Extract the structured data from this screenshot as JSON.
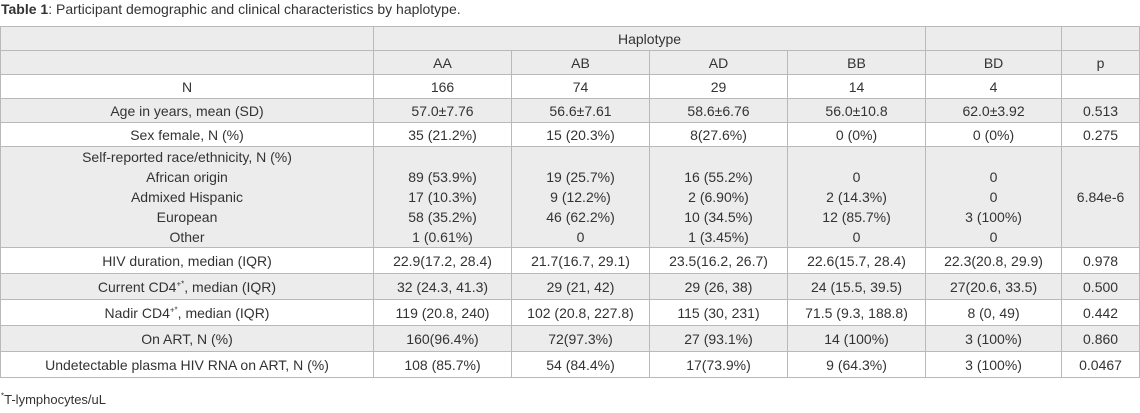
{
  "caption": {
    "label": "Table 1",
    "text": ": Participant demographic and clinical characteristics by haplotype."
  },
  "header": {
    "group": "Haplotype",
    "columns": [
      "AA",
      "AB",
      "AD",
      "BB",
      "BD"
    ],
    "p": "p"
  },
  "rows": {
    "n": {
      "label": "N",
      "values": [
        "166",
        "74",
        "29",
        "14",
        "4"
      ],
      "p": ""
    },
    "age": {
      "label": "Age in years, mean (SD)",
      "values": [
        "57.0±7.76",
        "56.6±7.61",
        "58.6±6.76",
        "56.0±10.8",
        "62.0±3.92"
      ],
      "p": "0.513"
    },
    "sex": {
      "label": "Sex female, N (%)",
      "values": [
        "35 (21.2%)",
        "15 (20.3%)",
        "8(27.6%)",
        "0 (0%)",
        "0 (0%)"
      ],
      "p": "0.275"
    },
    "race": {
      "label": "Self-reported race/ethnicity, N (%)",
      "sub": [
        {
          "label": "African origin",
          "values": [
            "89 (53.9%)",
            "19 (25.7%)",
            "16 (55.2%)",
            "0",
            "0"
          ]
        },
        {
          "label": "Admixed Hispanic",
          "values": [
            "17 (10.3%)",
            "9 (12.2%)",
            "2 (6.90%)",
            "2 (14.3%)",
            "0"
          ]
        },
        {
          "label": "European",
          "values": [
            "58 (35.2%)",
            "46 (62.2%)",
            "10 (34.5%)",
            "12 (85.7%)",
            "3 (100%)"
          ]
        },
        {
          "label": "Other",
          "values": [
            "1 (0.61%)",
            "0",
            "1 (3.45%)",
            "0",
            "0"
          ]
        }
      ],
      "p": "6.84e-6"
    },
    "hiv_duration": {
      "label": "HIV duration, median (IQR)",
      "values": [
        "22.9(17.2, 28.4)",
        "21.7(16.7, 29.1)",
        "23.5(16.2, 26.7)",
        "22.6(15.7, 28.4)",
        "22.3(20.8, 29.9)"
      ],
      "p": "0.978"
    },
    "cd4_current": {
      "label_pre": "Current CD4",
      "label_sup": "+*",
      "label_post": ", median (IQR)",
      "values": [
        "32 (24.3, 41.3)",
        "29 (21, 42)",
        "29 (26, 38)",
        "24 (15.5, 39.5)",
        "27(20.6, 33.5)"
      ],
      "p": "0.500"
    },
    "cd4_nadir": {
      "label_pre": "Nadir CD4",
      "label_sup": "+*",
      "label_post": ", median (IQR)",
      "values": [
        "119 (20.8, 240)",
        "102 (20.8, 227.8)",
        "115 (30, 231)",
        "71.5 (9.3, 188.8)",
        "8 (0, 49)"
      ],
      "p": "0.442"
    },
    "art": {
      "label": "On ART, N (%)",
      "values": [
        "160(96.4%)",
        "72(97.3%)",
        "27 (93.1%)",
        "14 (100%)",
        "3 (100%)"
      ],
      "p": "0.860"
    },
    "undetectable": {
      "label": "Undetectable plasma HIV RNA on ART, N (%)",
      "values": [
        "108 (85.7%)",
        "54 (84.4%)",
        "17(73.9%)",
        "9 (64.3%)",
        "3 (100%)"
      ],
      "p": "0.0467"
    }
  },
  "footnote": {
    "mark": "*",
    "text": "T-lymphocytes/uL"
  }
}
